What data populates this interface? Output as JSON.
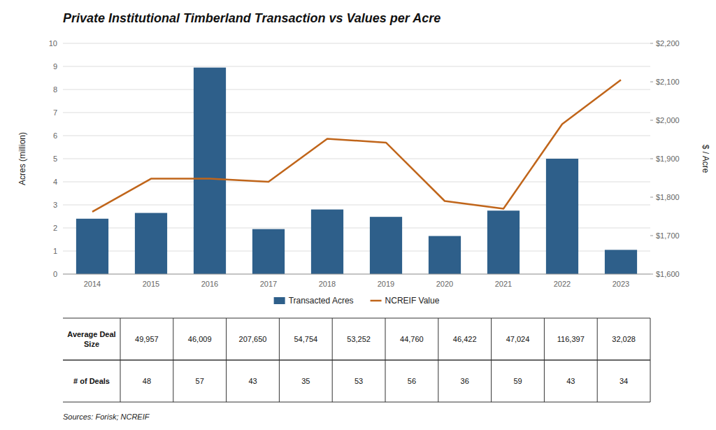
{
  "chart_data": {
    "type": "bar",
    "title": "Private Institutional Timberland Transaction vs Values per Acre",
    "categories": [
      "2014",
      "2015",
      "2016",
      "2017",
      "2018",
      "2019",
      "2020",
      "2021",
      "2022",
      "2023"
    ],
    "series": [
      {
        "name": "Transacted Acres",
        "type": "bar",
        "color": "#2E5F8A",
        "values": [
          2.4,
          2.65,
          8.95,
          1.95,
          2.8,
          2.48,
          1.65,
          2.75,
          5.0,
          1.05
        ]
      },
      {
        "name": "NCREIF Value",
        "type": "line",
        "axis": "y2",
        "color": "#C0651A",
        "values": [
          1762,
          1848,
          1848,
          1840,
          1952,
          1942,
          1790,
          1770,
          1990,
          2105
        ]
      }
    ],
    "y_label": "Acres (million)",
    "y2_label": "$ / Acre",
    "ylim": [
      0,
      10
    ],
    "yticks": [
      0,
      1,
      2,
      3,
      4,
      5,
      6,
      7,
      8,
      9,
      10
    ],
    "y2lim": [
      1600,
      2200
    ],
    "y2ticks": [
      {
        "value": 1600,
        "label": "$1,600"
      },
      {
        "value": 1700,
        "label": "$1,700"
      },
      {
        "value": 1800,
        "label": "$1,800"
      },
      {
        "value": 1900,
        "label": "$1,900"
      },
      {
        "value": 2000,
        "label": "$2,000"
      },
      {
        "value": 2100,
        "label": "$2,100"
      },
      {
        "value": 2200,
        "label": "$2,200"
      }
    ],
    "grid": true,
    "legend": "bottom",
    "table": {
      "rows": [
        {
          "label": "Average Deal\nSize",
          "values": [
            49957,
            46009,
            207650,
            54754,
            53252,
            44760,
            46422,
            47024,
            116397,
            32028
          ],
          "value_labels": [
            "49,957",
            "46,009",
            "207,650",
            "54,754",
            "53,252",
            "44,760",
            "46,422",
            "47,024",
            "116,397",
            "32,028"
          ]
        },
        {
          "label": "# of Deals",
          "values": [
            48,
            57,
            43,
            35,
            53,
            56,
            36,
            59,
            43,
            34
          ]
        }
      ]
    },
    "source": "Sources: Forisk; NCREIF"
  }
}
